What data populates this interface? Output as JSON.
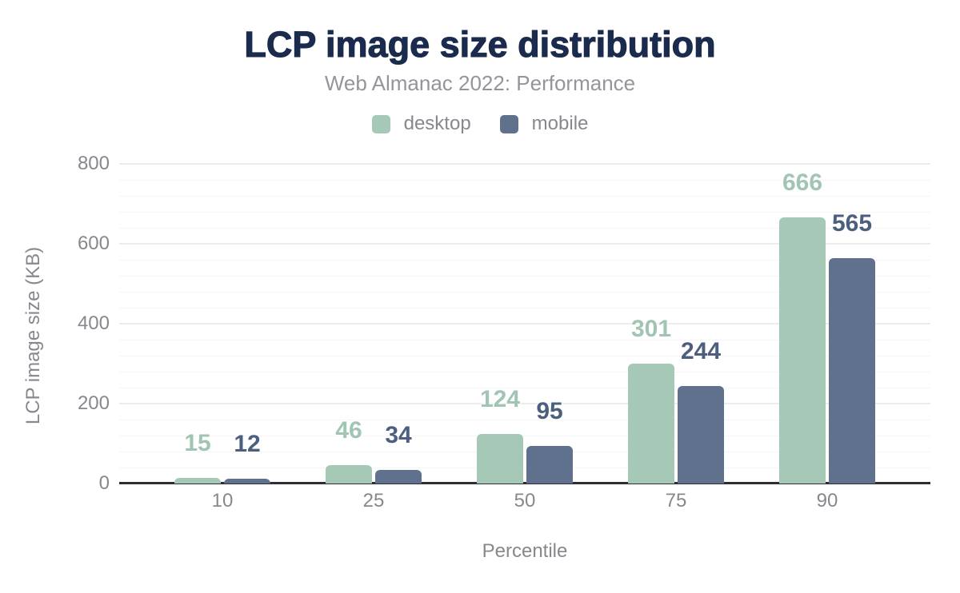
{
  "header": {
    "title": "LCP image size distribution",
    "subtitle": "Web Almanac 2022: Performance"
  },
  "chart_data": {
    "type": "bar",
    "title": "LCP image size distribution",
    "subtitle": "Web Almanac 2022: Performance",
    "categories": [
      "10",
      "25",
      "50",
      "75",
      "90"
    ],
    "series": [
      {
        "name": "desktop",
        "values": [
          15,
          46,
          124,
          301,
          666
        ],
        "color": "#a6c8b6",
        "label_color": "#a0c5b2"
      },
      {
        "name": "mobile",
        "values": [
          12,
          34,
          95,
          244,
          565
        ],
        "color": "#5f718c",
        "label_color": "#4d5f7e"
      }
    ],
    "xlabel": "Percentile",
    "ylabel": "LCP image size (KB)",
    "ylim": [
      0,
      800
    ],
    "yticks": [
      0,
      200,
      400,
      600,
      800
    ],
    "minor_grid_step": 40,
    "grid": true,
    "legend_position": "top",
    "value_labels": true
  },
  "colors": {
    "title": "#1a2b4d",
    "subtitle": "#94959b",
    "axis_text": "#87888e",
    "axis_line": "#2d2e33",
    "grid_minor": "#f5f5f7",
    "grid_major": "#ececee",
    "background": "#ffffff",
    "desktop": "#a6c8b6",
    "mobile": "#5f718c"
  }
}
